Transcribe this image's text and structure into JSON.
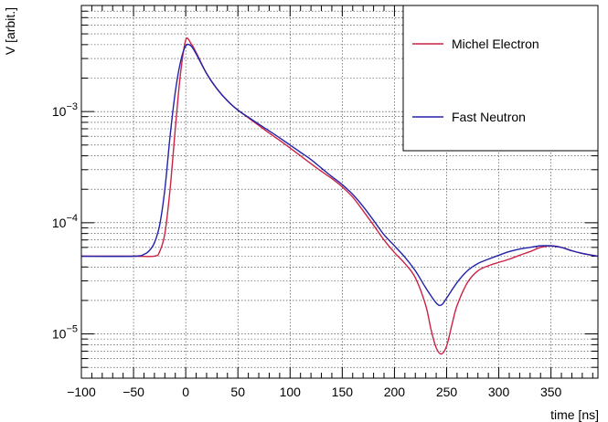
{
  "chart_data": {
    "type": "line",
    "title": "",
    "xlabel": "time [ns]",
    "ylabel": "V [arbit.]",
    "xlim": [
      -100,
      395
    ],
    "ylim": [
      4e-06,
      0.009
    ],
    "yscale": "log",
    "grid": true,
    "legend_position": "top-right",
    "x_ticks": [
      -100,
      -50,
      0,
      50,
      100,
      150,
      200,
      250,
      300,
      350
    ],
    "y_ticks": [
      {
        "value": 1e-05,
        "base": "10",
        "exp": "-5"
      },
      {
        "value": 0.0001,
        "base": "10",
        "exp": "-4"
      },
      {
        "value": 0.001,
        "base": "10",
        "exp": "-3"
      }
    ],
    "series": [
      {
        "name": "Michel Electron",
        "color": "#cc2244",
        "x": [
          -100,
          -50,
          -30,
          -25,
          -20,
          -15,
          -10,
          -5,
          0,
          5,
          10,
          20,
          30,
          40,
          50,
          60,
          70,
          80,
          90,
          100,
          110,
          120,
          130,
          140,
          150,
          160,
          170,
          180,
          190,
          200,
          210,
          220,
          230,
          235,
          240,
          245,
          250,
          255,
          260,
          270,
          280,
          290,
          300,
          310,
          320,
          330,
          340,
          350,
          360,
          370,
          380,
          395
        ],
        "y": [
          5e-05,
          5e-05,
          5e-05,
          5.5e-05,
          8e-05,
          0.0002,
          0.0007,
          0.0022,
          0.0044,
          0.0041,
          0.0034,
          0.0022,
          0.0016,
          0.00125,
          0.00103,
          0.00088,
          0.00075,
          0.00064,
          0.00055,
          0.00047,
          0.0004,
          0.00034,
          0.00029,
          0.00025,
          0.00021,
          0.00017,
          0.000128,
          9.5e-05,
          7e-05,
          5.4e-05,
          4.3e-05,
          3.2e-05,
          1.8e-05,
          1.1e-05,
          7.5e-06,
          6.6e-06,
          7.8e-06,
          1.2e-05,
          1.8e-05,
          2.9e-05,
          3.7e-05,
          4.1e-05,
          4.4e-05,
          4.7e-05,
          5.1e-05,
          5.5e-05,
          6e-05,
          6.2e-05,
          6e-05,
          5.6e-05,
          5.3e-05,
          5e-05
        ]
      },
      {
        "name": "Fast Neutron",
        "color": "#2222aa",
        "x": [
          -100,
          -50,
          -40,
          -35,
          -30,
          -25,
          -20,
          -15,
          -10,
          -5,
          0,
          5,
          10,
          20,
          30,
          40,
          50,
          60,
          70,
          80,
          90,
          100,
          110,
          120,
          130,
          140,
          150,
          160,
          170,
          180,
          190,
          200,
          210,
          220,
          230,
          240,
          245,
          250,
          260,
          270,
          280,
          290,
          300,
          310,
          320,
          330,
          340,
          350,
          360,
          370,
          380,
          395
        ],
        "y": [
          5e-05,
          5e-05,
          5.2e-05,
          5.6e-05,
          6.6e-05,
          9.5e-05,
          0.0002,
          0.0006,
          0.0015,
          0.0028,
          0.0039,
          0.0039,
          0.0033,
          0.0022,
          0.0016,
          0.00125,
          0.00103,
          0.00089,
          0.00077,
          0.00067,
          0.00058,
          0.0005,
          0.00043,
          0.00037,
          0.00031,
          0.00026,
          0.00022,
          0.00018,
          0.00014,
          0.000105,
          7.8e-05,
          6.2e-05,
          4.9e-05,
          3.7e-05,
          2.6e-05,
          1.9e-05,
          1.82e-05,
          2.1e-05,
          2.9e-05,
          3.7e-05,
          4.3e-05,
          4.7e-05,
          5.1e-05,
          5.5e-05,
          5.8e-05,
          6e-05,
          6.2e-05,
          6.2e-05,
          6e-05,
          5.6e-05,
          5.3e-05,
          5e-05
        ]
      }
    ]
  }
}
